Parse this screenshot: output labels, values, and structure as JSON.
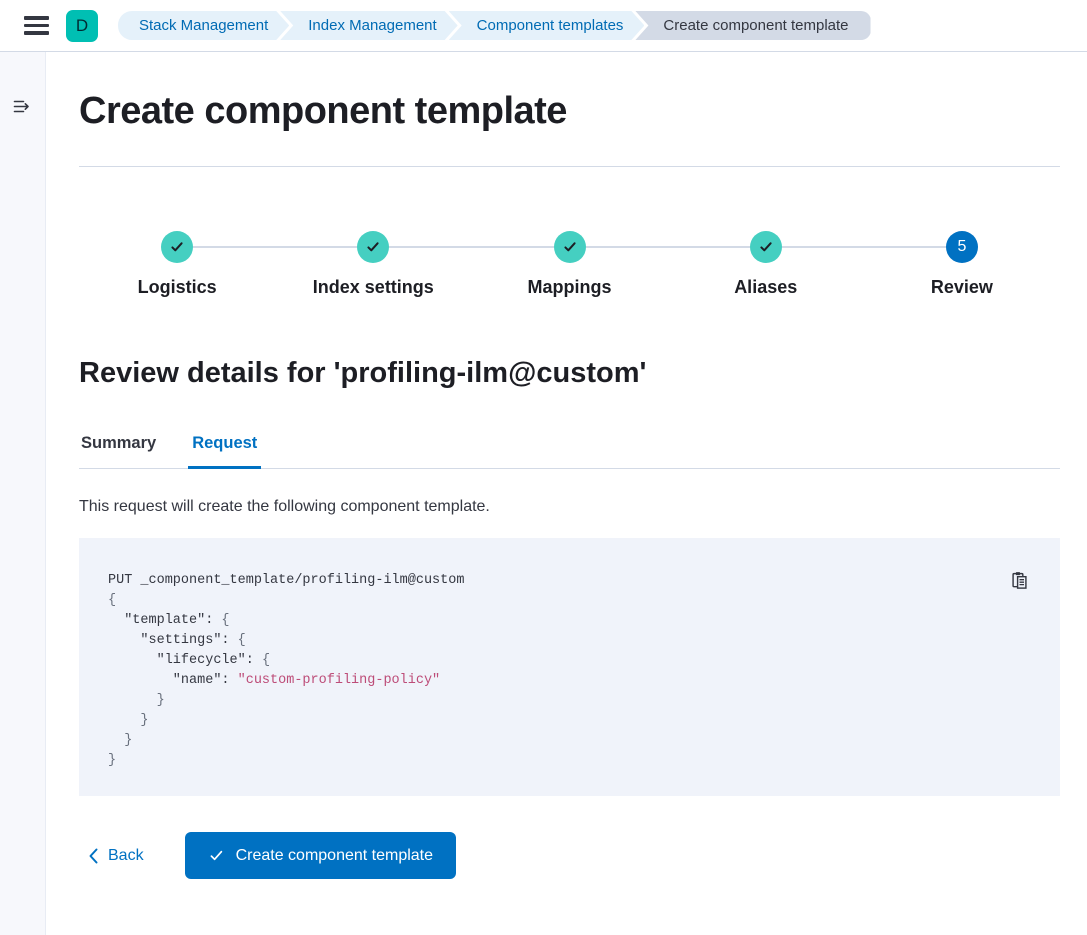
{
  "colors": {
    "primary": "#0071C2",
    "link": "#006BB4",
    "success_teal": "#45CFC1",
    "teal_badge": "#00BFB3",
    "step_line": "#D3DAE6",
    "string": "#BD4C78",
    "code_bg": "#F0F3FA",
    "crumb_bg": "#E5F1FA",
    "crumb_last_bg": "#D3DAE6",
    "rail_bg": "#F7F8FC"
  },
  "header": {
    "logo_letter": "D",
    "breadcrumbs": [
      {
        "label": "Stack Management",
        "current": false
      },
      {
        "label": "Index Management",
        "current": false
      },
      {
        "label": "Component templates",
        "current": false
      },
      {
        "label": "Create component template",
        "current": true
      }
    ]
  },
  "page": {
    "title": "Create component template",
    "steps": [
      {
        "label": "Logistics",
        "status": "complete"
      },
      {
        "label": "Index settings",
        "status": "complete"
      },
      {
        "label": "Mappings",
        "status": "complete"
      },
      {
        "label": "Aliases",
        "status": "complete"
      },
      {
        "label": "Review",
        "status": "current",
        "number": "5"
      }
    ],
    "review_heading": "Review details for 'profiling-ilm@custom'",
    "tabs": [
      {
        "label": "Summary",
        "active": false
      },
      {
        "label": "Request",
        "active": true
      }
    ],
    "request_description": "This request will create the following component template.",
    "code_lines": [
      [
        {
          "text": "PUT _component_template/profiling-ilm@custom",
          "style": "plain"
        }
      ],
      [
        {
          "text": "{",
          "style": "punct"
        }
      ],
      [
        {
          "text": "  \"template\": ",
          "style": "plain"
        },
        {
          "text": "{",
          "style": "punct"
        }
      ],
      [
        {
          "text": "    \"settings\": ",
          "style": "plain"
        },
        {
          "text": "{",
          "style": "punct"
        }
      ],
      [
        {
          "text": "      \"lifecycle\": ",
          "style": "plain"
        },
        {
          "text": "{",
          "style": "punct"
        }
      ],
      [
        {
          "text": "        \"name\": ",
          "style": "plain"
        },
        {
          "text": "\"custom-profiling-policy\"",
          "style": "string"
        }
      ],
      [
        {
          "text": "      }",
          "style": "punct"
        }
      ],
      [
        {
          "text": "    }",
          "style": "punct"
        }
      ],
      [
        {
          "text": "  }",
          "style": "punct"
        }
      ],
      [
        {
          "text": "}",
          "style": "punct"
        }
      ]
    ],
    "footer": {
      "back_label": "Back",
      "submit_label": "Create component template"
    }
  }
}
